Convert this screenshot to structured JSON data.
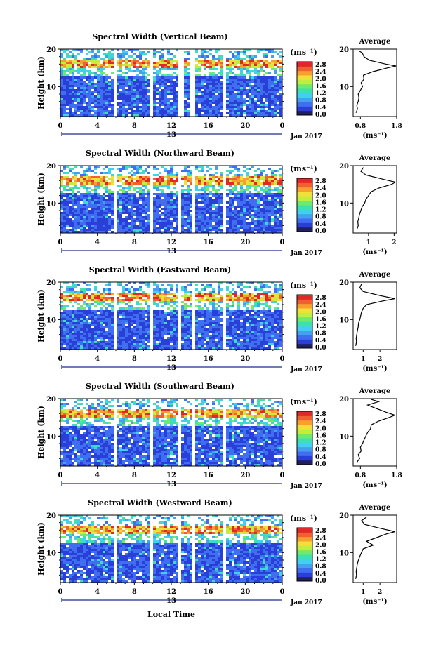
{
  "figure": {
    "footer_label": "Local Time"
  },
  "colorbar": {
    "unit": "(ms⁻¹)",
    "ticks": [
      "0.0",
      "0.4",
      "0.8",
      "1.2",
      "1.6",
      "2.0",
      "2.4",
      "2.8"
    ],
    "colors": [
      "#202060",
      "#2a3fd8",
      "#3f6ff0",
      "#45a0f0",
      "#40d0f0",
      "#3ee0b0",
      "#6fea6a",
      "#c0ee40",
      "#f2e03a",
      "#f7a030",
      "#f06030",
      "#e02828"
    ]
  },
  "chart_data": [
    {
      "type": "heatmap",
      "title": "Spectral Width (Vertical Beam)",
      "ylabel": "Height (km)",
      "x_ticks": [
        "0",
        "4",
        "8",
        "12",
        "16",
        "20",
        "0"
      ],
      "x_sub_label": "13",
      "date_label": "Jan 2017",
      "xlim": [
        0,
        24
      ],
      "ylim": [
        2,
        20
      ],
      "y_ticks": [
        "10",
        "20"
      ],
      "gaps_hours": [
        [
          5.8,
          6.0
        ],
        [
          9.7,
          9.9
        ],
        [
          12.9,
          13.3
        ],
        [
          14.1,
          14.6
        ],
        [
          17.6,
          17.8
        ]
      ],
      "layer_km": [
        15.0,
        16.5
      ],
      "average": {
        "title": "Average",
        "x_ticks": [
          "0.8",
          "1.8"
        ],
        "xlabel": "(ms⁻¹)",
        "xlim": [
          0.6,
          1.8
        ],
        "y_ticks": [
          "10",
          "20"
        ],
        "profile": [
          [
            0.68,
            3
          ],
          [
            0.72,
            4
          ],
          [
            0.7,
            5
          ],
          [
            0.74,
            6
          ],
          [
            0.76,
            7
          ],
          [
            0.74,
            8
          ],
          [
            0.8,
            9
          ],
          [
            0.86,
            10
          ],
          [
            0.82,
            11
          ],
          [
            0.9,
            12
          ],
          [
            0.88,
            13
          ],
          [
            1.15,
            14
          ],
          [
            1.55,
            15
          ],
          [
            1.78,
            15.5
          ],
          [
            1.5,
            16
          ],
          [
            1.05,
            17
          ],
          [
            0.9,
            18
          ],
          [
            0.85,
            19
          ],
          [
            0.75,
            19.6
          ]
        ]
      }
    },
    {
      "type": "heatmap",
      "title": "Spectral Width (Northward Beam)",
      "ylabel": "Height (km)",
      "x_ticks": [
        "0",
        "4",
        "8",
        "12",
        "16",
        "20",
        "0"
      ],
      "x_sub_label": "13",
      "date_label": "Jan 2017",
      "xlim": [
        0,
        24
      ],
      "ylim": [
        2,
        20
      ],
      "y_ticks": [
        "10",
        "20"
      ],
      "gaps_hours": [
        [
          5.8,
          6.0
        ],
        [
          9.7,
          9.9
        ],
        [
          12.9,
          13.2
        ],
        [
          14.2,
          14.5
        ],
        [
          17.6,
          17.8
        ]
      ],
      "layer_km": [
        15.0,
        16.5
      ],
      "average": {
        "title": "Average",
        "x_ticks": [
          "1",
          "2"
        ],
        "xlabel": "(ms⁻¹)",
        "xlim": [
          0.4,
          2.1
        ],
        "y_ticks": [
          "10",
          "20"
        ],
        "profile": [
          [
            0.55,
            3
          ],
          [
            0.6,
            4
          ],
          [
            0.58,
            5
          ],
          [
            0.62,
            6
          ],
          [
            0.65,
            7
          ],
          [
            0.7,
            8
          ],
          [
            0.75,
            9
          ],
          [
            0.85,
            10
          ],
          [
            0.9,
            11
          ],
          [
            1.0,
            12
          ],
          [
            1.1,
            13
          ],
          [
            1.4,
            14
          ],
          [
            1.9,
            15
          ],
          [
            2.05,
            15.6
          ],
          [
            1.6,
            16.3
          ],
          [
            0.9,
            17.5
          ],
          [
            0.7,
            18.5
          ],
          [
            0.8,
            19.5
          ]
        ]
      }
    },
    {
      "type": "heatmap",
      "title": "Spectral Width (Eastward Beam)",
      "ylabel": "Height (km)",
      "x_ticks": [
        "0",
        "4",
        "8",
        "12",
        "16",
        "20",
        "0"
      ],
      "x_sub_label": "13",
      "date_label": "Jan 2017",
      "xlim": [
        0,
        24
      ],
      "ylim": [
        2,
        20
      ],
      "y_ticks": [
        "10",
        "20"
      ],
      "gaps_hours": [
        [
          5.8,
          6.0
        ],
        [
          9.7,
          9.9
        ],
        [
          12.9,
          13.2
        ],
        [
          14.2,
          14.5
        ],
        [
          17.6,
          17.8
        ]
      ],
      "layer_km": [
        15.0,
        16.5
      ],
      "average": {
        "title": "Average",
        "x_ticks": [
          "1",
          "2"
        ],
        "xlabel": "(ms⁻¹)",
        "xlim": [
          0.4,
          3.0
        ],
        "y_ticks": [
          "10",
          "20"
        ],
        "profile": [
          [
            0.55,
            3
          ],
          [
            0.6,
            4
          ],
          [
            0.58,
            5
          ],
          [
            0.62,
            6
          ],
          [
            0.65,
            7
          ],
          [
            0.7,
            8
          ],
          [
            0.72,
            9
          ],
          [
            0.8,
            10
          ],
          [
            0.85,
            11
          ],
          [
            0.9,
            12
          ],
          [
            1.0,
            13
          ],
          [
            1.2,
            14
          ],
          [
            2.2,
            15
          ],
          [
            2.9,
            15.6
          ],
          [
            2.0,
            16.4
          ],
          [
            1.0,
            17.5
          ],
          [
            0.8,
            18.5
          ],
          [
            0.9,
            19.5
          ]
        ]
      }
    },
    {
      "type": "heatmap",
      "title": "Spectral Width (Southward Beam)",
      "ylabel": "Height (km)",
      "x_ticks": [
        "0",
        "4",
        "8",
        "12",
        "16",
        "20",
        "0"
      ],
      "x_sub_label": "13",
      "date_label": "Jan 2017",
      "xlim": [
        0,
        24
      ],
      "ylim": [
        2,
        20
      ],
      "y_ticks": [
        "10",
        "20"
      ],
      "gaps_hours": [
        [
          5.8,
          6.0
        ],
        [
          9.7,
          9.9
        ],
        [
          12.9,
          13.2
        ],
        [
          14.2,
          14.5
        ],
        [
          17.6,
          17.8
        ]
      ],
      "layer_km": [
        15.0,
        16.5
      ],
      "average": {
        "title": "Average",
        "x_ticks": [
          "0.8",
          "1.8"
        ],
        "xlabel": "(ms⁻¹)",
        "xlim": [
          0.6,
          1.8
        ],
        "y_ticks": [
          "10",
          "20"
        ],
        "profile": [
          [
            0.7,
            3
          ],
          [
            0.78,
            4
          ],
          [
            0.74,
            5
          ],
          [
            0.82,
            6
          ],
          [
            0.8,
            7
          ],
          [
            0.86,
            8
          ],
          [
            0.9,
            9
          ],
          [
            0.95,
            10
          ],
          [
            1.0,
            11
          ],
          [
            1.08,
            12
          ],
          [
            1.1,
            13
          ],
          [
            1.3,
            14
          ],
          [
            1.6,
            15
          ],
          [
            1.75,
            15.6
          ],
          [
            1.5,
            16.4
          ],
          [
            1.2,
            17.5
          ],
          [
            1.0,
            18.3
          ],
          [
            1.3,
            19.2
          ],
          [
            1.1,
            19.8
          ]
        ]
      }
    },
    {
      "type": "heatmap",
      "title": "Spectral Width (Westward Beam)",
      "ylabel": "Height (km)",
      "x_ticks": [
        "0",
        "4",
        "8",
        "12",
        "16",
        "20",
        "0"
      ],
      "x_sub_label": "13",
      "date_label": "Jan 2017",
      "xlim": [
        0,
        24
      ],
      "ylim": [
        2,
        20
      ],
      "y_ticks": [
        "10",
        "20"
      ],
      "gaps_hours": [
        [
          5.8,
          6.0
        ],
        [
          9.7,
          9.9
        ],
        [
          12.9,
          13.2
        ],
        [
          14.2,
          14.5
        ],
        [
          17.6,
          17.8
        ]
      ],
      "layer_km": [
        15.0,
        16.5
      ],
      "average": {
        "title": "Average",
        "x_ticks": [
          "1",
          "2"
        ],
        "xlabel": "(ms⁻¹)",
        "xlim": [
          0.4,
          3.0
        ],
        "y_ticks": [
          "10",
          "20"
        ],
        "profile": [
          [
            0.55,
            3
          ],
          [
            0.6,
            4
          ],
          [
            0.58,
            5
          ],
          [
            0.62,
            6
          ],
          [
            0.65,
            7
          ],
          [
            0.72,
            8
          ],
          [
            0.8,
            9
          ],
          [
            0.9,
            10
          ],
          [
            1.0,
            11
          ],
          [
            1.6,
            12
          ],
          [
            1.2,
            13
          ],
          [
            1.8,
            14
          ],
          [
            2.4,
            15
          ],
          [
            2.9,
            15.6
          ],
          [
            2.0,
            16.5
          ],
          [
            1.1,
            17.5
          ],
          [
            0.9,
            18.5
          ],
          [
            1.2,
            19.5
          ]
        ]
      }
    }
  ]
}
